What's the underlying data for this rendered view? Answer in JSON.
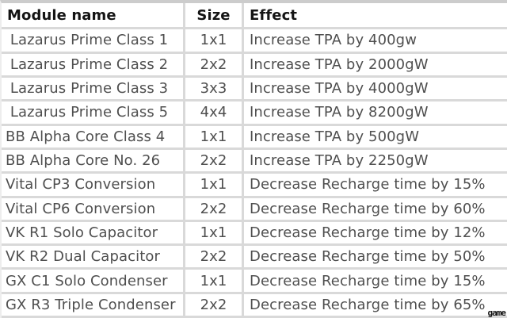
{
  "colors": {
    "separator": "#d9d9d9",
    "top_band": "#cccccc",
    "header_text": "#141414",
    "body_text": "#4f4f4f",
    "row_background": "#ffffff"
  },
  "watermark": "game",
  "table": {
    "columns": [
      {
        "key": "module",
        "label": "Module name"
      },
      {
        "key": "size",
        "label": "Size"
      },
      {
        "key": "effect",
        "label": "Effect"
      }
    ],
    "rows": [
      {
        "module": " Lazarus Prime Class 1",
        "size": "1x1",
        "effect": "Increase TPA by 400gw"
      },
      {
        "module": " Lazarus Prime Class 2",
        "size": "2x2",
        "effect": "Increase TPA by 2000gW"
      },
      {
        "module": " Lazarus Prime Class 3",
        "size": "3x3",
        "effect": "Increase TPA by 4000gW"
      },
      {
        "module": " Lazarus Prime Class 5",
        "size": "4x4",
        "effect": "Increase TPA by 8200gW"
      },
      {
        "module": "BB Alpha Core Class 4",
        "size": "1x1",
        "effect": "Increase TPA by 500gW"
      },
      {
        "module": "BB Alpha Core No. 26",
        "size": "2x2",
        "effect": "Increase TPA by 2250gW"
      },
      {
        "module": "Vital CP3 Conversion",
        "size": "1x1",
        "effect": "Decrease Recharge time by 15%"
      },
      {
        "module": "Vital CP6 Conversion",
        "size": "2x2",
        "effect": "Decrease Recharge time by 60%"
      },
      {
        "module": "VK R1 Solo Capacitor",
        "size": "1x1",
        "effect": "Decrease Recharge time by 12%"
      },
      {
        "module": "VK R2 Dual Capacitor",
        "size": "2x2",
        "effect": "Decrease Recharge time by 50%"
      },
      {
        "module": "GX C1 Solo Condenser",
        "size": "1x1",
        "effect": "Decrease Recharge time by 15%"
      },
      {
        "module": "GX R3 Triple Condenser",
        "size": "2x2",
        "effect": "Decrease Recharge time by 65%"
      }
    ]
  }
}
